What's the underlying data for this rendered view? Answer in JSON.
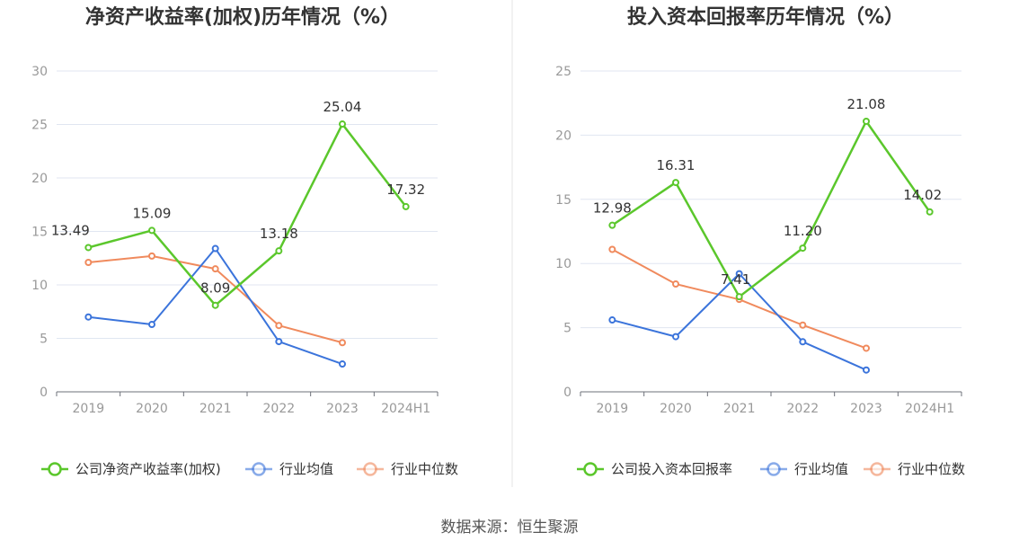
{
  "colors": {
    "company": "#5bc72c",
    "industry_avg": "#3b74db",
    "industry_median": "#f08a5d",
    "axis": "#6e7079",
    "grid": "#e0e6f1",
    "divider": "#e6e6e6"
  },
  "source": "数据来源：恒生聚源",
  "chart_data": [
    {
      "type": "line",
      "title": "净资产收益率(加权)历年情况（%）",
      "categories": [
        "2019",
        "2020",
        "2021",
        "2022",
        "2023",
        "2024H1"
      ],
      "ylim": [
        0,
        30
      ],
      "yticks": [
        0,
        5,
        10,
        15,
        20,
        25,
        30
      ],
      "grid": true,
      "legend_position": "bottom",
      "series": [
        {
          "name": "公司净资产收益率(加权)",
          "key": "company",
          "values": [
            13.49,
            15.09,
            8.09,
            13.18,
            25.04,
            17.32
          ],
          "labels": [
            "13.49",
            "15.09",
            "8.09",
            "13.18",
            "25.04",
            "17.32"
          ]
        },
        {
          "name": "行业均值",
          "key": "industry_avg",
          "values": [
            7.0,
            6.3,
            13.4,
            4.7,
            2.6,
            null
          ]
        },
        {
          "name": "行业中位数",
          "key": "industry_median",
          "values": [
            12.1,
            12.7,
            11.5,
            6.2,
            4.6,
            null
          ]
        }
      ]
    },
    {
      "type": "line",
      "title": "投入资本回报率历年情况（%）",
      "categories": [
        "2019",
        "2020",
        "2021",
        "2022",
        "2023",
        "2024H1"
      ],
      "ylim": [
        0,
        25
      ],
      "yticks": [
        0,
        5,
        10,
        15,
        20,
        25
      ],
      "grid": true,
      "legend_position": "bottom",
      "series": [
        {
          "name": "公司投入资本回报率",
          "key": "company",
          "values": [
            12.98,
            16.31,
            7.41,
            11.2,
            21.08,
            14.02
          ],
          "labels": [
            "12.98",
            "16.31",
            "7.41",
            "11.20",
            "21.08",
            "14.02"
          ]
        },
        {
          "name": "行业均值",
          "key": "industry_avg",
          "values": [
            5.6,
            4.3,
            9.2,
            3.9,
            1.7,
            null
          ]
        },
        {
          "name": "行业中位数",
          "key": "industry_median",
          "values": [
            11.1,
            8.4,
            7.2,
            5.2,
            3.4,
            null
          ]
        }
      ]
    }
  ]
}
